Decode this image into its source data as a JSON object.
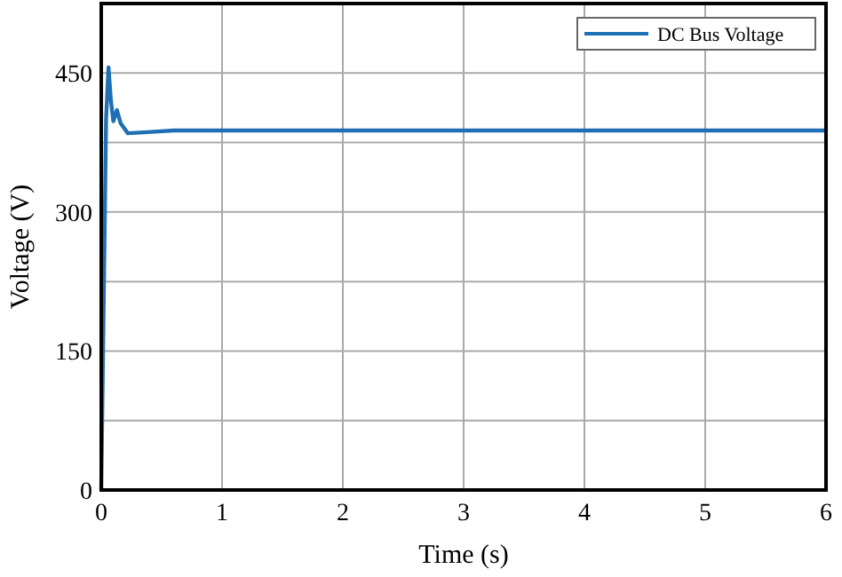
{
  "chart_data": {
    "type": "line",
    "xlabel": "Time (s)",
    "ylabel": "Voltage (V)",
    "x": [
      0,
      0.02,
      0.04,
      0.06,
      0.08,
      0.1,
      0.13,
      0.16,
      0.22,
      0.35,
      0.6,
      6
    ],
    "series": [
      {
        "name": "DC Bus Voltage",
        "color": "#1f6fb4",
        "values": [
          0,
          200,
          400,
          456,
          420,
          398,
          410,
          396,
          385,
          386,
          388,
          388
        ]
      }
    ],
    "xlim": [
      0,
      6
    ],
    "xticks": [
      0,
      1,
      2,
      3,
      4,
      5,
      6
    ],
    "ylim": [
      0,
      525
    ],
    "yticks": [
      0,
      {
        "value": 75,
        "label": null
      },
      150,
      {
        "value": 225,
        "label": null
      },
      300,
      {
        "value": 375,
        "label": null
      },
      450
    ],
    "grid": true,
    "legend": "top right",
    "marker": "none",
    "line_style": "solid"
  }
}
